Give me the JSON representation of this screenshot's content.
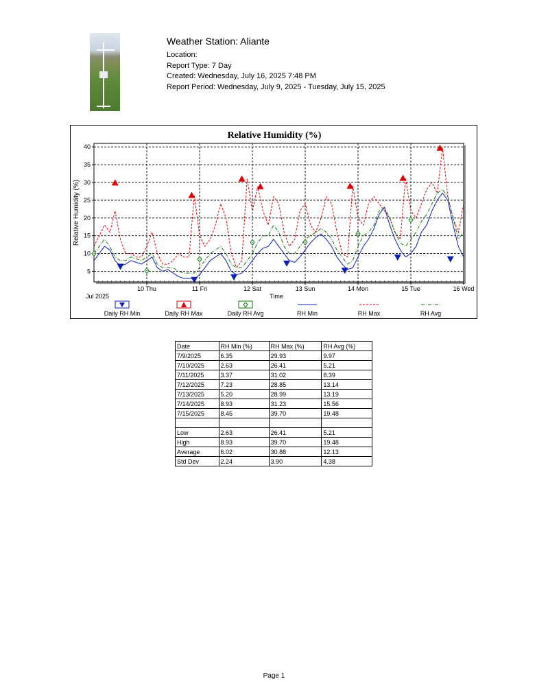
{
  "header": {
    "station": "Weather Station: Aliante",
    "location": "Location:",
    "report_type": "Report Type: 7 Day",
    "created": "Created: Wednesday, July 16, 2025 7:48 PM",
    "period": "Report Period: Wednesday, July 9, 2025 - Tuesday, July 15, 2025"
  },
  "chart_data": {
    "type": "line",
    "title": "Relative Humidity (%)",
    "xlabel": "Time",
    "ylabel": "Relative Humidity (%)",
    "x_month_label": "Jul 2025",
    "x_ticks": [
      "10 Thu",
      "11 Fri",
      "12 Sat",
      "13 Sun",
      "14 Mon",
      "15 Tue",
      "16 Wed"
    ],
    "x_range_days": [
      9,
      16
    ],
    "ylim": [
      2,
      41
    ],
    "y_ticks": [
      5,
      10,
      15,
      20,
      25,
      30,
      35,
      40
    ],
    "grid": true,
    "legend_position": "bottom",
    "colors": {
      "min": "#0a1fb4",
      "max": "#e00000",
      "avg": "#0a7a0a"
    },
    "legend": [
      "Daily RH Min",
      "Daily RH Max",
      "Daily RH Avg",
      "RH Min",
      "RH Max",
      "RH Avg"
    ],
    "daily_markers": {
      "min": [
        {
          "x": 9.5,
          "y": 6.35
        },
        {
          "x": 10.9,
          "y": 2.63
        },
        {
          "x": 11.65,
          "y": 3.37
        },
        {
          "x": 12.65,
          "y": 7.23
        },
        {
          "x": 13.75,
          "y": 5.2
        },
        {
          "x": 14.75,
          "y": 8.93
        },
        {
          "x": 15.75,
          "y": 8.45
        }
      ],
      "max": [
        {
          "x": 9.4,
          "y": 29.93
        },
        {
          "x": 10.85,
          "y": 26.41
        },
        {
          "x": 11.8,
          "y": 31.02
        },
        {
          "x": 12.15,
          "y": 28.85
        },
        {
          "x": 13.85,
          "y": 28.99
        },
        {
          "x": 14.85,
          "y": 31.23
        },
        {
          "x": 15.55,
          "y": 39.7
        }
      ],
      "avg": [
        {
          "x": 9.0,
          "y": 9.97
        },
        {
          "x": 10.0,
          "y": 5.21
        },
        {
          "x": 11.0,
          "y": 8.39
        },
        {
          "x": 12.0,
          "y": 13.14
        },
        {
          "x": 13.0,
          "y": 13.19
        },
        {
          "x": 14.0,
          "y": 15.56
        },
        {
          "x": 15.0,
          "y": 19.48
        }
      ]
    },
    "series": [
      {
        "name": "RH Min",
        "x": [
          9.0,
          9.1,
          9.2,
          9.3,
          9.4,
          9.5,
          9.6,
          9.7,
          9.8,
          9.9,
          10.0,
          10.1,
          10.2,
          10.3,
          10.4,
          10.5,
          10.6,
          10.7,
          10.8,
          10.9,
          11.0,
          11.1,
          11.2,
          11.3,
          11.4,
          11.5,
          11.6,
          11.7,
          11.8,
          11.9,
          12.0,
          12.1,
          12.2,
          12.3,
          12.4,
          12.5,
          12.6,
          12.7,
          12.8,
          12.9,
          13.0,
          13.1,
          13.2,
          13.3,
          13.4,
          13.5,
          13.6,
          13.7,
          13.8,
          13.9,
          14.0,
          14.1,
          14.2,
          14.3,
          14.4,
          14.5,
          14.6,
          14.7,
          14.8,
          14.9,
          15.0,
          15.1,
          15.2,
          15.3,
          15.4,
          15.5,
          15.6,
          15.7,
          15.8,
          15.9,
          16.0
        ],
        "values": [
          8,
          10,
          12,
          11,
          8,
          6.5,
          7,
          8,
          7.5,
          7,
          8,
          9,
          6,
          5,
          5.5,
          4.5,
          3.5,
          3,
          3,
          2.8,
          4,
          6,
          8,
          9,
          10,
          8,
          5,
          4,
          4.5,
          6,
          8,
          10,
          11.5,
          12,
          14,
          12,
          10,
          8,
          7.5,
          9,
          11,
          13,
          14.5,
          15.5,
          14,
          12,
          9,
          7,
          5.5,
          6,
          9,
          12,
          14,
          17,
          21,
          23,
          18,
          14,
          11,
          9,
          10,
          12,
          16,
          18,
          22,
          25,
          27,
          25,
          18,
          12,
          9
        ]
      },
      {
        "name": "RH Max",
        "x": [
          9.0,
          9.1,
          9.2,
          9.3,
          9.4,
          9.5,
          9.6,
          9.7,
          9.8,
          9.9,
          10.0,
          10.1,
          10.2,
          10.3,
          10.4,
          10.5,
          10.6,
          10.7,
          10.8,
          10.9,
          11.0,
          11.1,
          11.2,
          11.3,
          11.4,
          11.5,
          11.6,
          11.7,
          11.8,
          11.9,
          12.0,
          12.1,
          12.2,
          12.3,
          12.4,
          12.5,
          12.6,
          12.7,
          12.8,
          12.9,
          13.0,
          13.1,
          13.2,
          13.3,
          13.4,
          13.5,
          13.6,
          13.7,
          13.8,
          13.9,
          14.0,
          14.1,
          14.2,
          14.3,
          14.4,
          14.5,
          14.6,
          14.7,
          14.8,
          14.9,
          15.0,
          15.1,
          15.2,
          15.3,
          15.4,
          15.5,
          15.6,
          15.7,
          15.8,
          15.9,
          16.0
        ],
        "values": [
          12,
          15,
          18,
          16,
          22,
          14,
          10,
          10,
          9,
          9,
          12,
          16,
          10,
          7,
          7,
          8,
          10,
          9,
          9,
          26.41,
          15,
          12,
          14,
          18,
          24,
          20,
          10,
          6,
          8,
          31.02,
          22,
          28.85,
          22,
          18,
          26,
          24,
          16,
          12,
          14,
          22,
          24,
          18,
          16,
          20,
          26,
          24,
          16,
          10,
          9,
          28.99,
          20,
          18,
          24,
          26,
          24,
          22,
          20,
          16,
          14,
          31.23,
          22,
          20,
          24,
          28,
          30,
          27,
          39.7,
          26,
          20,
          16,
          24
        ]
      },
      {
        "name": "RH Avg",
        "x": [
          9.0,
          9.1,
          9.2,
          9.3,
          9.4,
          9.5,
          9.6,
          9.7,
          9.8,
          9.9,
          10.0,
          10.1,
          10.2,
          10.3,
          10.4,
          10.5,
          10.6,
          10.7,
          10.8,
          10.9,
          11.0,
          11.1,
          11.2,
          11.3,
          11.4,
          11.5,
          11.6,
          11.7,
          11.8,
          11.9,
          12.0,
          12.1,
          12.2,
          12.3,
          12.4,
          12.5,
          12.6,
          12.7,
          12.8,
          12.9,
          13.0,
          13.1,
          13.2,
          13.3,
          13.4,
          13.5,
          13.6,
          13.7,
          13.8,
          13.9,
          14.0,
          14.1,
          14.2,
          14.3,
          14.4,
          14.5,
          14.6,
          14.7,
          14.8,
          14.9,
          15.0,
          15.1,
          15.2,
          15.3,
          15.4,
          15.5,
          15.6,
          15.7,
          15.8,
          15.9,
          16.0
        ],
        "values": [
          10,
          12,
          14,
          12,
          9,
          8,
          8,
          9,
          8.5,
          8,
          9,
          10,
          7,
          6,
          6,
          6,
          5,
          4.5,
          4.5,
          4.5,
          6,
          8,
          10,
          11,
          12,
          10,
          7,
          6,
          6,
          8,
          10,
          13,
          15,
          15,
          18,
          16,
          12,
          10,
          10,
          12,
          14,
          15,
          16,
          17,
          16,
          14,
          11,
          9,
          7,
          8,
          12,
          15,
          16,
          18,
          22,
          23,
          20,
          16,
          13,
          12,
          14,
          16,
          19,
          21,
          24,
          27,
          28,
          26,
          20,
          14,
          16
        ]
      }
    ]
  },
  "table": {
    "headers": [
      "Date",
      "RH Min (%)",
      "RH Max (%)",
      "RH Avg (%)"
    ],
    "rows": [
      [
        "7/9/2025",
        "6.35",
        "29.93",
        "9.97"
      ],
      [
        "7/10/2025",
        "2.63",
        "26.41",
        "5.21"
      ],
      [
        "7/11/2025",
        "3.37",
        "31.02",
        "8.39"
      ],
      [
        "7/12/2025",
        "7.23",
        "28.85",
        "13.14"
      ],
      [
        "7/13/2025",
        "5.20",
        "28.99",
        "13.19"
      ],
      [
        "7/14/2025",
        "8.93",
        "31.23",
        "15.56"
      ],
      [
        "7/15/2025",
        "8.45",
        "39.70",
        "19.48"
      ]
    ],
    "summary": [
      [
        "Low",
        "2.63",
        "26.41",
        "5.21"
      ],
      [
        "High",
        "8.93",
        "39.70",
        "19.48"
      ],
      [
        "Average",
        "6.02",
        "30.88",
        "12.13"
      ],
      [
        "Std Dev",
        "2.24",
        "3.90",
        "4.38"
      ]
    ]
  },
  "footer": {
    "page": "Page 1"
  }
}
